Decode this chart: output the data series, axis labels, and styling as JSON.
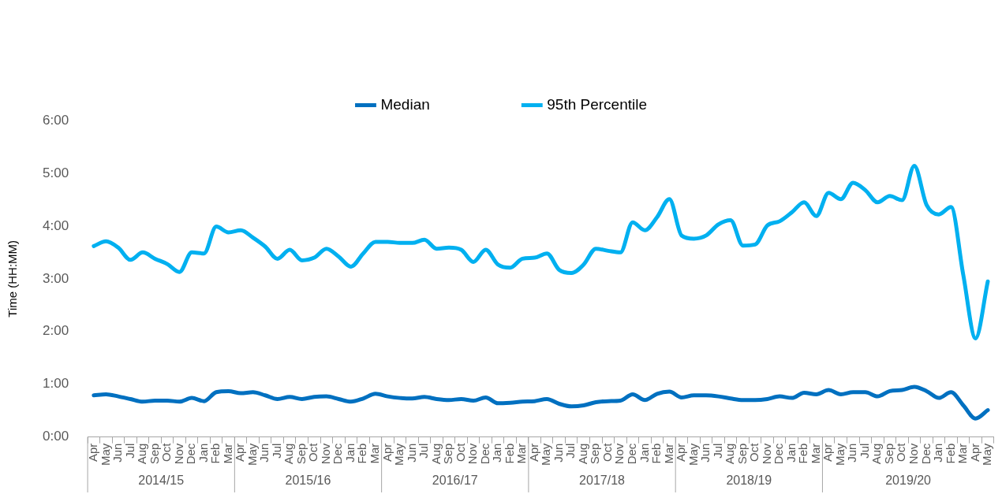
{
  "chart_data": {
    "type": "line",
    "ylabel": "Time (HH:MM)",
    "categories": [
      "Apr",
      "May",
      "Jun",
      "Jul",
      "Aug",
      "Sep",
      "Oct",
      "Nov",
      "Dec",
      "Jan",
      "Feb",
      "Mar",
      "Apr",
      "May",
      "Jun",
      "Jul",
      "Aug",
      "Sep",
      "Oct",
      "Nov",
      "Dec",
      "Jan",
      "Feb",
      "Mar",
      "Apr",
      "May",
      "Jun",
      "Jul",
      "Aug",
      "Sep",
      "Oct",
      "Nov",
      "Dec",
      "Jan",
      "Feb",
      "Mar",
      "Apr",
      "May",
      "Jun",
      "Jul",
      "Aug",
      "Sep",
      "Oct",
      "Nov",
      "Dec",
      "Jan",
      "Feb",
      "Mar",
      "Apr",
      "May",
      "Jun",
      "Jul",
      "Aug",
      "Sep",
      "Oct",
      "Nov",
      "Dec",
      "Jan",
      "Feb",
      "Mar",
      "Apr",
      "May",
      "Jun",
      "Jul",
      "Aug",
      "Sep",
      "Oct",
      "Nov",
      "Dec",
      "Jan",
      "Feb",
      "Mar",
      "Apr",
      "May"
    ],
    "series": [
      {
        "name": "Median",
        "color": "#0070c0",
        "values": [
          0.79,
          0.81,
          0.77,
          0.72,
          0.67,
          0.69,
          0.69,
          0.67,
          0.74,
          0.68,
          0.85,
          0.87,
          0.83,
          0.85,
          0.79,
          0.72,
          0.76,
          0.72,
          0.76,
          0.77,
          0.72,
          0.67,
          0.73,
          0.82,
          0.77,
          0.74,
          0.73,
          0.76,
          0.72,
          0.7,
          0.72,
          0.69,
          0.75,
          0.64,
          0.65,
          0.67,
          0.68,
          0.72,
          0.63,
          0.58,
          0.6,
          0.66,
          0.68,
          0.69,
          0.81,
          0.7,
          0.82,
          0.86,
          0.75,
          0.79,
          0.79,
          0.77,
          0.73,
          0.7,
          0.7,
          0.72,
          0.77,
          0.74,
          0.84,
          0.81,
          0.89,
          0.81,
          0.85,
          0.85,
          0.77,
          0.87,
          0.89,
          0.95,
          0.87,
          0.74,
          0.85,
          0.6,
          0.35,
          0.51
        ]
      },
      {
        "name": "95th Percentile",
        "color": "#00b0f0",
        "values": [
          3.62,
          3.71,
          3.59,
          3.36,
          3.5,
          3.38,
          3.28,
          3.13,
          3.5,
          3.48,
          3.99,
          3.88,
          3.92,
          3.78,
          3.61,
          3.38,
          3.55,
          3.35,
          3.4,
          3.57,
          3.42,
          3.23,
          3.48,
          3.7,
          3.7,
          3.68,
          3.68,
          3.74,
          3.57,
          3.59,
          3.55,
          3.32,
          3.55,
          3.27,
          3.21,
          3.38,
          3.4,
          3.48,
          3.17,
          3.11,
          3.27,
          3.57,
          3.53,
          3.5,
          4.07,
          3.92,
          4.17,
          4.51,
          3.82,
          3.76,
          3.82,
          4.03,
          4.11,
          3.63,
          3.65,
          4.01,
          4.09,
          4.26,
          4.45,
          4.19,
          4.63,
          4.51,
          4.82,
          4.68,
          4.45,
          4.57,
          4.49,
          5.14,
          4.4,
          4.22,
          4.36,
          3.07,
          1.87,
          2.95
        ]
      }
    ],
    "ylim": [
      0,
      6
    ],
    "yticks": [
      {
        "value": 0,
        "label": "0:00"
      },
      {
        "value": 1,
        "label": "1:00"
      },
      {
        "value": 2,
        "label": "2:00"
      },
      {
        "value": 3,
        "label": "3:00"
      },
      {
        "value": 4,
        "label": "4:00"
      },
      {
        "value": 5,
        "label": "5:00"
      },
      {
        "value": 6,
        "label": "6:00"
      }
    ],
    "annotations": [
      "2014/15",
      "2015/16",
      "2016/17",
      "2017/18",
      "2018/19",
      "2019/20"
    ],
    "legend": "top",
    "marker": "none",
    "line_style": "solid"
  }
}
